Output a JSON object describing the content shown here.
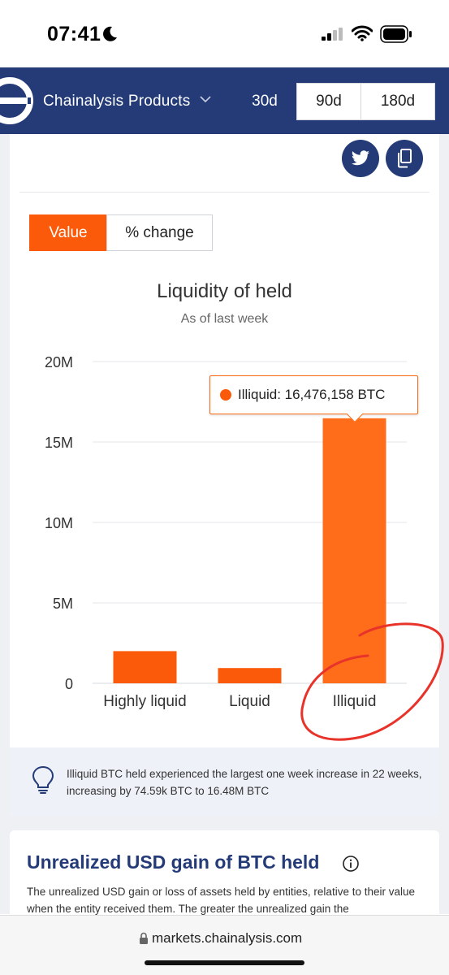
{
  "status_bar": {
    "time": "07:41"
  },
  "header": {
    "products_label": "Chainalysis Products",
    "ranges": [
      "30d",
      "90d",
      "180d"
    ]
  },
  "toggle": {
    "value_label": "Value",
    "change_label": "% change"
  },
  "chart_data": {
    "type": "bar",
    "title": "Liquidity of held",
    "subtitle": "As of last week",
    "categories": [
      "Highly liquid",
      "Liquid",
      "Illiquid"
    ],
    "values": [
      2000000,
      950000,
      16476158
    ],
    "ylim": [
      0,
      20000000
    ],
    "yticks": [
      0,
      5000000,
      10000000,
      15000000,
      20000000
    ],
    "ytick_labels": [
      "0",
      "5M",
      "10M",
      "15M",
      "20M"
    ],
    "grid": true,
    "color": "#fb5a0a",
    "highlight_color": "#ff6d1a",
    "highlight_index": 2
  },
  "tooltip": {
    "text": "Illiquid: 16,476,158 BTC"
  },
  "insight": {
    "text": "Illiquid BTC held experienced the largest one week increase in 22 weeks, increasing by 74.59k BTC to 16.48M BTC"
  },
  "section2": {
    "title": "Unrealized USD gain of BTC held",
    "description": "The unrealized USD gain or loss of assets held by entities, relative to their value when the entity received them. The greater the unrealized gain the"
  },
  "address_bar": {
    "url": "markets.chainalysis.com"
  }
}
